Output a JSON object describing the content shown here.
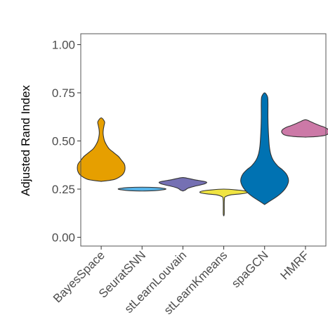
{
  "chart_data": {
    "type": "violin",
    "title": "",
    "xlabel": "",
    "ylabel": "Adjusted Rand Index",
    "ylim": [
      0,
      1.03
    ],
    "yticks": [
      0.0,
      0.25,
      0.5,
      0.75,
      1.0
    ],
    "ytick_labels": [
      "0.00",
      "0.25",
      "0.50",
      "0.75",
      "1.00"
    ],
    "grid": false,
    "legend": "none",
    "categories": [
      "BayesSpace",
      "SeuratSNN",
      "stLearnLouvain",
      "stLearnKmeans",
      "spaGCN",
      "HMRF"
    ],
    "series": [
      {
        "category": "BayesSpace",
        "color": "#E69F00",
        "min": 0.29,
        "max": 0.62,
        "profile": [
          [
            0.29,
            0.0
          ],
          [
            0.3,
            0.55
          ],
          [
            0.32,
            0.85
          ],
          [
            0.34,
            0.97
          ],
          [
            0.36,
            1.0
          ],
          [
            0.38,
            0.97
          ],
          [
            0.4,
            0.85
          ],
          [
            0.42,
            0.72
          ],
          [
            0.44,
            0.52
          ],
          [
            0.46,
            0.33
          ],
          [
            0.48,
            0.22
          ],
          [
            0.5,
            0.14
          ],
          [
            0.52,
            0.1
          ],
          [
            0.54,
            0.08
          ],
          [
            0.56,
            0.09
          ],
          [
            0.58,
            0.12
          ],
          [
            0.6,
            0.14
          ],
          [
            0.62,
            0.0
          ]
        ]
      },
      {
        "category": "SeuratSNN",
        "color": "#56B4E9",
        "min": 0.24,
        "max": 0.26,
        "profile": [
          [
            0.24,
            0.0
          ],
          [
            0.242,
            0.55
          ],
          [
            0.246,
            0.85
          ],
          [
            0.25,
            1.0
          ],
          [
            0.254,
            0.9
          ],
          [
            0.258,
            0.6
          ],
          [
            0.26,
            0.0
          ]
        ]
      },
      {
        "category": "stLearnLouvain",
        "color": "#7570B3",
        "min": 0.24,
        "max": 0.31,
        "profile": [
          [
            0.24,
            0.0
          ],
          [
            0.245,
            0.1
          ],
          [
            0.255,
            0.22
          ],
          [
            0.265,
            0.5
          ],
          [
            0.275,
            0.85
          ],
          [
            0.285,
            1.0
          ],
          [
            0.292,
            0.8
          ],
          [
            0.298,
            0.5
          ],
          [
            0.305,
            0.25
          ],
          [
            0.31,
            0.0
          ]
        ]
      },
      {
        "category": "stLearnKmeans",
        "color": "#F0E442",
        "min": 0.11,
        "max": 0.25,
        "profile": [
          [
            0.11,
            0.0
          ],
          [
            0.12,
            0.02
          ],
          [
            0.15,
            0.02
          ],
          [
            0.18,
            0.02
          ],
          [
            0.2,
            0.03
          ],
          [
            0.21,
            0.06
          ],
          [
            0.22,
            0.3
          ],
          [
            0.225,
            0.7
          ],
          [
            0.23,
            0.95
          ],
          [
            0.235,
            1.0
          ],
          [
            0.24,
            0.9
          ],
          [
            0.245,
            0.6
          ],
          [
            0.25,
            0.0
          ]
        ]
      },
      {
        "category": "spaGCN",
        "color": "#0072B2",
        "min": 0.17,
        "max": 0.75,
        "profile": [
          [
            0.17,
            0.0
          ],
          [
            0.19,
            0.25
          ],
          [
            0.21,
            0.5
          ],
          [
            0.23,
            0.7
          ],
          [
            0.25,
            0.85
          ],
          [
            0.27,
            0.95
          ],
          [
            0.29,
            1.0
          ],
          [
            0.31,
            0.98
          ],
          [
            0.33,
            0.9
          ],
          [
            0.35,
            0.75
          ],
          [
            0.37,
            0.55
          ],
          [
            0.4,
            0.36
          ],
          [
            0.43,
            0.26
          ],
          [
            0.47,
            0.2
          ],
          [
            0.52,
            0.17
          ],
          [
            0.57,
            0.15
          ],
          [
            0.62,
            0.14
          ],
          [
            0.66,
            0.14
          ],
          [
            0.7,
            0.14
          ],
          [
            0.73,
            0.12
          ],
          [
            0.75,
            0.0
          ]
        ]
      },
      {
        "category": "HMRF",
        "color": "#CC79A7",
        "min": 0.52,
        "max": 0.61,
        "profile": [
          [
            0.52,
            0.0
          ],
          [
            0.523,
            0.5
          ],
          [
            0.53,
            0.85
          ],
          [
            0.54,
            0.97
          ],
          [
            0.55,
            1.0
          ],
          [
            0.56,
            0.95
          ],
          [
            0.57,
            0.82
          ],
          [
            0.58,
            0.6
          ],
          [
            0.59,
            0.4
          ],
          [
            0.6,
            0.22
          ],
          [
            0.61,
            0.0
          ]
        ]
      }
    ]
  }
}
